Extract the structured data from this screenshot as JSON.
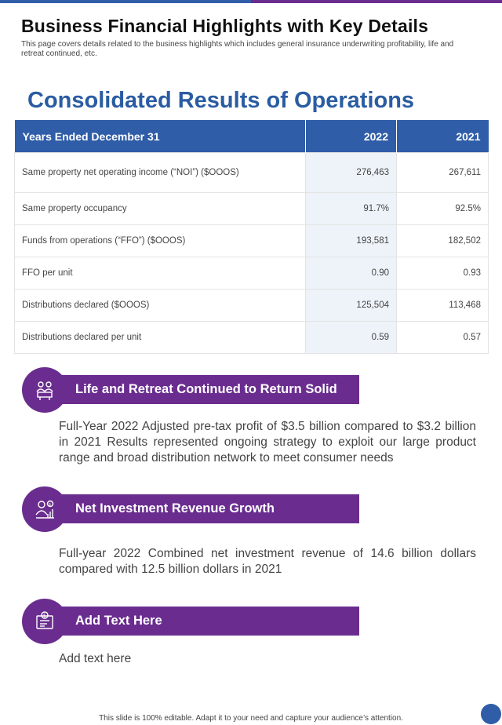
{
  "header": {
    "title": "Business Financial Highlights with Key Details",
    "subtitle": "This page covers details related to the business highlights which includes general insurance underwriting profitability, life and retreat continued, etc."
  },
  "section_heading": "Consolidated Results of Operations",
  "table": {
    "columns": [
      "Years Ended December 31",
      "2022",
      "2021"
    ],
    "rows": [
      {
        "label": "Same property  net operating income (“NOI”)  ($OOOS)",
        "v2022": "276,463",
        "v2021": "267,611"
      },
      {
        "label": "Same property  occupancy",
        "v2022": "91.7%",
        "v2021": "92.5%"
      },
      {
        "label": "Funds from  operations  (“FFO”)  ($OOOS)",
        "v2022": "193,581",
        "v2021": "182,502"
      },
      {
        "label": "FFO per unit",
        "v2022": "0.90",
        "v2021": "0.93"
      },
      {
        "label": "Distributions  declared ($OOOS)",
        "v2022": "125,504",
        "v2021": "113,468"
      },
      {
        "label": "Distributions  declared  per unit",
        "v2022": "0.59",
        "v2021": "0.57"
      }
    ]
  },
  "cards": [
    {
      "heading": "Life and Retreat Continued to Return Solid",
      "icon": "team-meeting-icon",
      "body": "Full-Year 2022 Adjusted pre-tax profit of $3.5 billion compared to $3.2 billion in 2021 Results represented ongoing strategy to exploit our large product range and broad distribution network to meet consumer needs"
    },
    {
      "heading": "Net Investment Revenue Growth",
      "icon": "investor-growth-icon",
      "body": "Full-year 2022 Combined net investment revenue of 14.6 billion dollars compared with 12.5 billion dollars in 2021"
    },
    {
      "heading": "Add Text Here",
      "icon": "finance-report-icon",
      "body": "Add text here"
    }
  ],
  "footer": "This slide is 100% editable. Adapt it to your need and capture your audience’s attention.",
  "colors": {
    "accent_blue": "#2f5da8",
    "accent_purple": "#6a2d8f",
    "heading_blue": "#2a5ca2"
  }
}
